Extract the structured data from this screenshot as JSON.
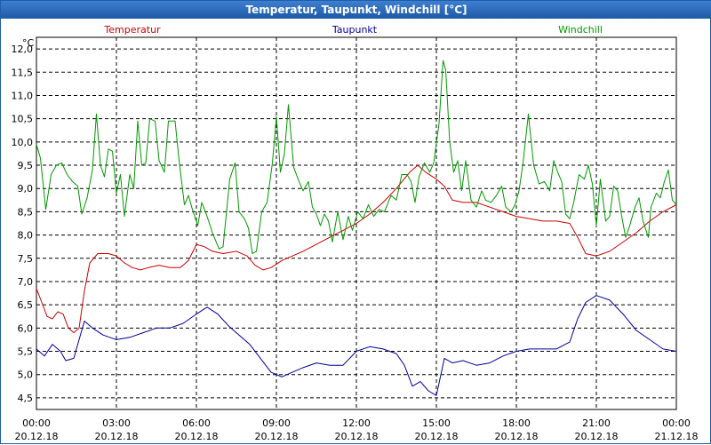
{
  "window": {
    "title": "Temperatur, Taupunkt, Windchill [°C]"
  },
  "chart_data": {
    "type": "line",
    "title": "Temperatur, Taupunkt, Windchill [°C]",
    "ylabel": "°C",
    "ylim": [
      4.25,
      12.25
    ],
    "yticks": [
      4.5,
      5.0,
      5.5,
      6.0,
      6.5,
      7.0,
      7.5,
      8.0,
      8.5,
      9.0,
      9.5,
      10.0,
      10.5,
      11.0,
      11.5,
      12.0
    ],
    "ytick_labels": [
      "4,5",
      "5,0",
      "5,5",
      "6,0",
      "6,5",
      "7,0",
      "7,5",
      "8,0",
      "8,5",
      "9,0",
      "9,5",
      "10,0",
      "10,5",
      "11,0",
      "11,5",
      "12,0"
    ],
    "xlim": [
      0,
      24
    ],
    "xticks": [
      {
        "x": 0,
        "time": "00:00",
        "date": "20.12.18"
      },
      {
        "x": 3,
        "time": "03:00",
        "date": "20.12.18"
      },
      {
        "x": 6,
        "time": "06:00",
        "date": "20.12.18"
      },
      {
        "x": 9,
        "time": "09:00",
        "date": "20.12.18"
      },
      {
        "x": 12,
        "time": "12:00",
        "date": "20.12.18"
      },
      {
        "x": 15,
        "time": "15:00",
        "date": "20.12.18"
      },
      {
        "x": 18,
        "time": "18:00",
        "date": "20.12.18"
      },
      {
        "x": 21,
        "time": "21:00",
        "date": "20.12.18"
      },
      {
        "x": 24,
        "time": "00:00",
        "date": "21.12.18"
      }
    ],
    "grid": true,
    "legend_position": "top",
    "series": [
      {
        "name": "Temperatur",
        "color": "#cc0000",
        "points": [
          [
            0,
            6.85
          ],
          [
            0.2,
            6.55
          ],
          [
            0.4,
            6.25
          ],
          [
            0.6,
            6.2
          ],
          [
            0.8,
            6.35
          ],
          [
            1.0,
            6.3
          ],
          [
            1.2,
            6.0
          ],
          [
            1.4,
            5.9
          ],
          [
            1.6,
            6.0
          ],
          [
            1.8,
            6.8
          ],
          [
            2.0,
            7.4
          ],
          [
            2.3,
            7.6
          ],
          [
            2.7,
            7.6
          ],
          [
            3.0,
            7.55
          ],
          [
            3.3,
            7.4
          ],
          [
            3.6,
            7.3
          ],
          [
            3.9,
            7.25
          ],
          [
            4.2,
            7.3
          ],
          [
            4.6,
            7.35
          ],
          [
            5.0,
            7.3
          ],
          [
            5.4,
            7.3
          ],
          [
            5.7,
            7.45
          ],
          [
            6.0,
            7.8
          ],
          [
            6.3,
            7.75
          ],
          [
            6.6,
            7.65
          ],
          [
            7.0,
            7.6
          ],
          [
            7.5,
            7.65
          ],
          [
            7.9,
            7.55
          ],
          [
            8.2,
            7.35
          ],
          [
            8.5,
            7.25
          ],
          [
            8.8,
            7.3
          ],
          [
            9.2,
            7.45
          ],
          [
            9.6,
            7.55
          ],
          [
            10.0,
            7.65
          ],
          [
            10.5,
            7.8
          ],
          [
            11.0,
            7.95
          ],
          [
            11.5,
            8.1
          ],
          [
            12.0,
            8.25
          ],
          [
            12.5,
            8.45
          ],
          [
            13.0,
            8.7
          ],
          [
            13.5,
            9.0
          ],
          [
            14.0,
            9.35
          ],
          [
            14.3,
            9.5
          ],
          [
            14.6,
            9.35
          ],
          [
            15.0,
            9.2
          ],
          [
            15.3,
            9.05
          ],
          [
            15.6,
            8.75
          ],
          [
            16.0,
            8.7
          ],
          [
            16.5,
            8.7
          ],
          [
            17.0,
            8.6
          ],
          [
            17.5,
            8.5
          ],
          [
            18.0,
            8.4
          ],
          [
            18.5,
            8.35
          ],
          [
            19.0,
            8.3
          ],
          [
            19.5,
            8.3
          ],
          [
            20.0,
            8.25
          ],
          [
            20.3,
            7.95
          ],
          [
            20.6,
            7.6
          ],
          [
            21.0,
            7.55
          ],
          [
            21.5,
            7.65
          ],
          [
            22.0,
            7.85
          ],
          [
            22.5,
            8.05
          ],
          [
            23.0,
            8.3
          ],
          [
            23.5,
            8.5
          ],
          [
            24.0,
            8.65
          ]
        ]
      },
      {
        "name": "Taupunkt",
        "color": "#000099",
        "points": [
          [
            0,
            5.55
          ],
          [
            0.3,
            5.4
          ],
          [
            0.6,
            5.65
          ],
          [
            0.9,
            5.5
          ],
          [
            1.1,
            5.3
          ],
          [
            1.4,
            5.35
          ],
          [
            1.6,
            5.75
          ],
          [
            1.8,
            6.15
          ],
          [
            2.1,
            6.0
          ],
          [
            2.5,
            5.85
          ],
          [
            3.0,
            5.75
          ],
          [
            3.5,
            5.8
          ],
          [
            4.0,
            5.9
          ],
          [
            4.5,
            6.0
          ],
          [
            5.0,
            6.0
          ],
          [
            5.5,
            6.1
          ],
          [
            6.0,
            6.3
          ],
          [
            6.4,
            6.45
          ],
          [
            6.8,
            6.3
          ],
          [
            7.2,
            6.05
          ],
          [
            7.6,
            5.85
          ],
          [
            8.0,
            5.65
          ],
          [
            8.4,
            5.35
          ],
          [
            8.8,
            5.05
          ],
          [
            9.2,
            4.95
          ],
          [
            9.6,
            5.05
          ],
          [
            10.0,
            5.15
          ],
          [
            10.5,
            5.25
          ],
          [
            11.0,
            5.2
          ],
          [
            11.5,
            5.2
          ],
          [
            12.0,
            5.5
          ],
          [
            12.5,
            5.6
          ],
          [
            13.0,
            5.55
          ],
          [
            13.5,
            5.45
          ],
          [
            13.8,
            5.2
          ],
          [
            14.1,
            4.75
          ],
          [
            14.4,
            4.85
          ],
          [
            14.7,
            4.65
          ],
          [
            15.0,
            4.55
          ],
          [
            15.3,
            5.35
          ],
          [
            15.6,
            5.25
          ],
          [
            16.0,
            5.3
          ],
          [
            16.5,
            5.2
          ],
          [
            17.0,
            5.25
          ],
          [
            17.5,
            5.4
          ],
          [
            18.0,
            5.5
          ],
          [
            18.5,
            5.55
          ],
          [
            19.0,
            5.55
          ],
          [
            19.5,
            5.55
          ],
          [
            20.0,
            5.7
          ],
          [
            20.3,
            6.2
          ],
          [
            20.6,
            6.55
          ],
          [
            21.0,
            6.7
          ],
          [
            21.5,
            6.6
          ],
          [
            22.0,
            6.3
          ],
          [
            22.5,
            5.95
          ],
          [
            23.0,
            5.75
          ],
          [
            23.5,
            5.55
          ],
          [
            24.0,
            5.5
          ]
        ]
      },
      {
        "name": "Windchill",
        "color": "#009900",
        "points": [
          [
            0,
            9.95
          ],
          [
            0.15,
            9.65
          ],
          [
            0.35,
            8.55
          ],
          [
            0.55,
            9.3
          ],
          [
            0.75,
            9.5
          ],
          [
            0.95,
            9.55
          ],
          [
            1.15,
            9.3
          ],
          [
            1.35,
            9.15
          ],
          [
            1.55,
            9.05
          ],
          [
            1.7,
            8.45
          ],
          [
            1.9,
            8.8
          ],
          [
            2.1,
            9.4
          ],
          [
            2.25,
            10.6
          ],
          [
            2.4,
            9.5
          ],
          [
            2.55,
            9.25
          ],
          [
            2.7,
            9.85
          ],
          [
            2.85,
            9.8
          ],
          [
            3.0,
            8.9
          ],
          [
            3.15,
            9.3
          ],
          [
            3.3,
            8.4
          ],
          [
            3.5,
            9.3
          ],
          [
            3.65,
            9.0
          ],
          [
            3.8,
            10.45
          ],
          [
            3.95,
            9.5
          ],
          [
            4.1,
            9.55
          ],
          [
            4.25,
            10.5
          ],
          [
            4.45,
            10.45
          ],
          [
            4.6,
            9.6
          ],
          [
            4.8,
            9.35
          ],
          [
            4.95,
            10.45
          ],
          [
            5.2,
            10.45
          ],
          [
            5.35,
            9.6
          ],
          [
            5.55,
            8.65
          ],
          [
            5.7,
            8.85
          ],
          [
            5.85,
            8.55
          ],
          [
            6.05,
            8.2
          ],
          [
            6.2,
            8.7
          ],
          [
            6.4,
            8.4
          ],
          [
            6.6,
            8.05
          ],
          [
            6.85,
            7.7
          ],
          [
            7.0,
            7.75
          ],
          [
            7.25,
            9.2
          ],
          [
            7.45,
            9.55
          ],
          [
            7.6,
            8.5
          ],
          [
            7.8,
            8.35
          ],
          [
            7.95,
            8.15
          ],
          [
            8.1,
            7.6
          ],
          [
            8.25,
            7.65
          ],
          [
            8.45,
            8.5
          ],
          [
            8.65,
            8.7
          ],
          [
            8.85,
            9.55
          ],
          [
            9.0,
            10.55
          ],
          [
            9.15,
            9.35
          ],
          [
            9.3,
            9.75
          ],
          [
            9.45,
            10.8
          ],
          [
            9.65,
            9.45
          ],
          [
            9.85,
            9.15
          ],
          [
            10.0,
            8.95
          ],
          [
            10.2,
            9.15
          ],
          [
            10.35,
            8.6
          ],
          [
            10.5,
            8.45
          ],
          [
            10.65,
            8.2
          ],
          [
            10.8,
            8.45
          ],
          [
            10.95,
            8.3
          ],
          [
            11.1,
            7.85
          ],
          [
            11.3,
            8.5
          ],
          [
            11.5,
            7.9
          ],
          [
            11.7,
            8.4
          ],
          [
            11.85,
            8.1
          ],
          [
            12.05,
            8.5
          ],
          [
            12.25,
            8.35
          ],
          [
            12.45,
            8.65
          ],
          [
            12.65,
            8.4
          ],
          [
            12.85,
            8.55
          ],
          [
            13.05,
            8.5
          ],
          [
            13.3,
            8.85
          ],
          [
            13.5,
            8.75
          ],
          [
            13.7,
            9.3
          ],
          [
            13.9,
            9.3
          ],
          [
            14.05,
            9.15
          ],
          [
            14.2,
            8.7
          ],
          [
            14.35,
            9.25
          ],
          [
            14.55,
            9.55
          ],
          [
            14.75,
            9.35
          ],
          [
            14.9,
            9.55
          ],
          [
            15.1,
            10.4
          ],
          [
            15.25,
            11.75
          ],
          [
            15.35,
            11.55
          ],
          [
            15.5,
            10.0
          ],
          [
            15.65,
            9.35
          ],
          [
            15.8,
            9.6
          ],
          [
            15.95,
            8.95
          ],
          [
            16.1,
            9.6
          ],
          [
            16.3,
            8.75
          ],
          [
            16.5,
            8.6
          ],
          [
            16.7,
            8.95
          ],
          [
            16.85,
            8.75
          ],
          [
            17.05,
            8.7
          ],
          [
            17.25,
            8.85
          ],
          [
            17.45,
            9.05
          ],
          [
            17.6,
            8.6
          ],
          [
            17.8,
            8.5
          ],
          [
            17.95,
            8.65
          ],
          [
            18.1,
            8.95
          ],
          [
            18.25,
            9.55
          ],
          [
            18.45,
            10.6
          ],
          [
            18.65,
            9.5
          ],
          [
            18.85,
            9.1
          ],
          [
            19.05,
            9.15
          ],
          [
            19.25,
            8.95
          ],
          [
            19.4,
            9.6
          ],
          [
            19.55,
            9.35
          ],
          [
            19.7,
            9.15
          ],
          [
            19.85,
            8.45
          ],
          [
            20.0,
            8.35
          ],
          [
            20.15,
            8.7
          ],
          [
            20.35,
            9.3
          ],
          [
            20.55,
            9.2
          ],
          [
            20.7,
            9.5
          ],
          [
            20.85,
            9.1
          ],
          [
            21.0,
            8.2
          ],
          [
            21.15,
            9.2
          ],
          [
            21.35,
            8.3
          ],
          [
            21.5,
            8.4
          ],
          [
            21.65,
            9.05
          ],
          [
            21.8,
            8.95
          ],
          [
            21.95,
            8.4
          ],
          [
            22.1,
            7.95
          ],
          [
            22.25,
            8.2
          ],
          [
            22.45,
            8.6
          ],
          [
            22.6,
            8.8
          ],
          [
            22.75,
            8.3
          ],
          [
            22.95,
            7.95
          ],
          [
            23.05,
            8.6
          ],
          [
            23.25,
            8.9
          ],
          [
            23.4,
            8.8
          ],
          [
            23.55,
            9.15
          ],
          [
            23.7,
            9.4
          ],
          [
            23.85,
            8.75
          ],
          [
            24.0,
            8.65
          ]
        ]
      }
    ]
  }
}
